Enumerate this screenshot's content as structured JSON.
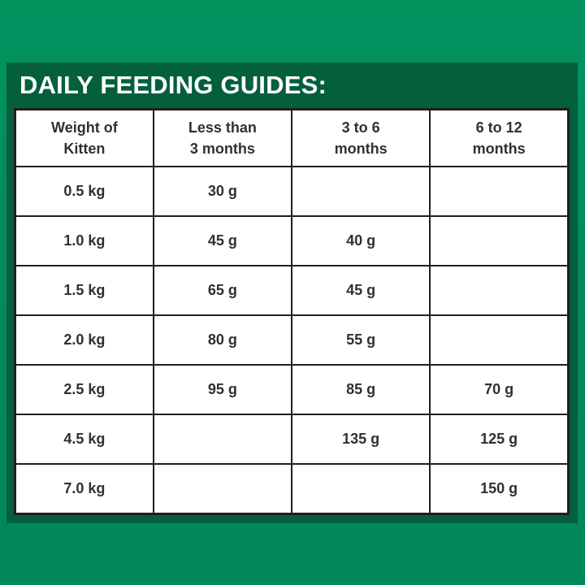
{
  "title": "DAILY FEEDING GUIDES:",
  "colors": {
    "bg_top": "#01945f",
    "bg_mid": "#008a5d",
    "bg_bottom": "#00875a",
    "panel": "#045f3d",
    "border": "#1f1f1e",
    "cell": "#ffffff",
    "text": "#303030",
    "title": "#ffffff"
  },
  "table": {
    "headers": [
      {
        "line1": "Weight of",
        "line2": "Kitten"
      },
      {
        "line1": "Less than",
        "line2": "3 months"
      },
      {
        "line1": "3 to 6",
        "line2": "months"
      },
      {
        "line1": "6 to 12",
        "line2": "months"
      }
    ],
    "rows": [
      {
        "weight": "0.5 kg",
        "lt3": "30 g",
        "m3to6": "",
        "m6to12": ""
      },
      {
        "weight": "1.0 kg",
        "lt3": "45 g",
        "m3to6": "40 g",
        "m6to12": ""
      },
      {
        "weight": "1.5 kg",
        "lt3": "65 g",
        "m3to6": "45 g",
        "m6to12": ""
      },
      {
        "weight": "2.0 kg",
        "lt3": "80 g",
        "m3to6": "55 g",
        "m6to12": ""
      },
      {
        "weight": "2.5 kg",
        "lt3": "95 g",
        "m3to6": "85 g",
        "m6to12": "70 g"
      },
      {
        "weight": "4.5 kg",
        "lt3": "",
        "m3to6": "135 g",
        "m6to12": "125 g"
      },
      {
        "weight": "7.0 kg",
        "lt3": "",
        "m3to6": "",
        "m6to12": "150 g"
      }
    ]
  },
  "chart_data": {
    "type": "table",
    "title": "DAILY FEEDING GUIDES:",
    "columns": [
      "Weight of Kitten",
      "Less than 3 months",
      "3 to 6 months",
      "6 to 12 months"
    ],
    "rows": [
      [
        "0.5 kg",
        "30 g",
        "",
        ""
      ],
      [
        "1.0 kg",
        "45 g",
        "40 g",
        ""
      ],
      [
        "1.5 kg",
        "65 g",
        "45 g",
        ""
      ],
      [
        "2.0 kg",
        "80 g",
        "55 g",
        ""
      ],
      [
        "2.5 kg",
        "95 g",
        "85 g",
        "70 g"
      ],
      [
        "4.5 kg",
        "",
        "135 g",
        "125 g"
      ],
      [
        "7.0 kg",
        "",
        "",
        "150 g"
      ]
    ],
    "units": {
      "weight": "kg",
      "amount": "g"
    },
    "layout": {
      "grid": true,
      "header_row": true
    }
  }
}
